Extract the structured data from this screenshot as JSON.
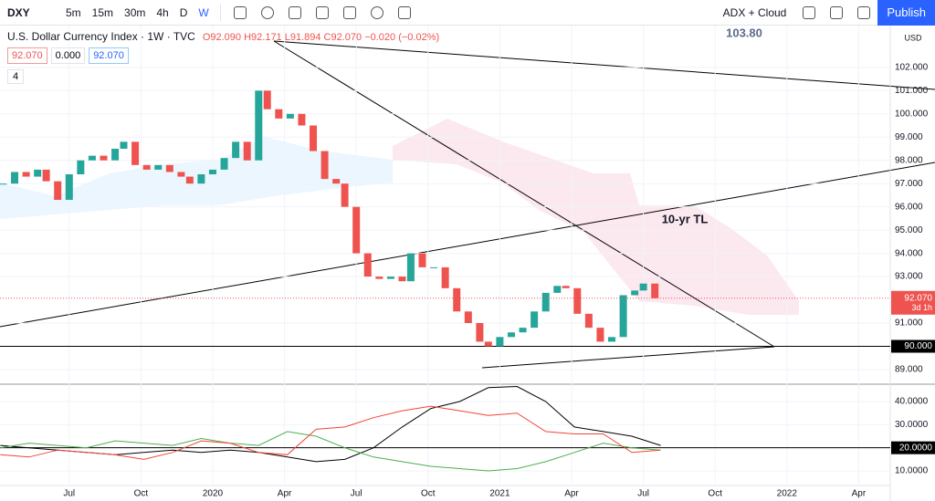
{
  "toolbar": {
    "symbol": "DXY",
    "intervals": [
      "5m",
      "15m",
      "30m",
      "4h",
      "D",
      "W"
    ],
    "indicators": "ADX + Cloud",
    "publish": "Publish"
  },
  "legend": {
    "title": "U.S. Dollar Currency Index · 1W · TVC",
    "ohlc": "O92.090 H92.171 L91.894 C92.070 −0.020 (−0.02%)",
    "badges": [
      "92.070",
      "0.000",
      "92.070"
    ],
    "count": "4"
  },
  "chart_data": [
    {
      "type": "candlestick",
      "currency": "USD",
      "annotations": [
        "103.80",
        "10-yr TL"
      ],
      "x": [
        2019.27,
        2019.31,
        2019.35,
        2019.39,
        2019.42,
        2019.46,
        2019.5,
        2019.54,
        2019.58,
        2019.62,
        2019.66,
        2019.69,
        2019.73,
        2019.77,
        2019.81,
        2019.85,
        2019.89,
        2019.92,
        2019.96,
        2020.0,
        2020.04,
        2020.08,
        2020.12,
        2020.16,
        2020.19,
        2020.23,
        2020.27,
        2020.31,
        2020.35,
        2020.39,
        2020.43,
        2020.46,
        2020.5,
        2020.54,
        2020.58,
        2020.62,
        2020.66,
        2020.69,
        2020.73,
        2020.77,
        2020.81,
        2020.85,
        2020.89,
        2020.93,
        2020.96,
        2021.0,
        2021.04,
        2021.08,
        2021.12,
        2021.16,
        2021.2,
        2021.23,
        2021.27,
        2021.31,
        2021.35,
        2021.39,
        2021.43,
        2021.47,
        2021.5,
        2021.54
      ],
      "close": [
        97.0,
        97.5,
        97.3,
        97.6,
        97.1,
        96.3,
        97.4,
        98.0,
        98.2,
        98.0,
        98.5,
        98.8,
        97.8,
        97.6,
        97.8,
        97.5,
        97.3,
        97.0,
        97.4,
        97.6,
        98.1,
        98.8,
        98.0,
        101.0,
        100.2,
        99.8,
        100.0,
        99.5,
        98.4,
        97.2,
        97.0,
        96.0,
        94.0,
        93.0,
        92.9,
        93.0,
        92.8,
        94.0,
        93.4,
        93.4,
        92.5,
        91.5,
        91.0,
        90.2,
        90.0,
        90.4,
        90.6,
        90.8,
        91.5,
        92.3,
        92.6,
        92.5,
        91.4,
        90.8,
        90.2,
        90.4,
        92.2,
        92.4,
        92.7,
        92.07
      ],
      "color_up": "#26a69a",
      "color_down": "#ef5350",
      "xlim": [
        2019.259,
        2022.36
      ],
      "xticks": [
        {
          "value": 2019.5,
          "label": "Jul"
        },
        {
          "value": 2019.75,
          "label": "Oct"
        },
        2020,
        {
          "value": 2020.25,
          "label": "Apr"
        },
        {
          "value": 2020.5,
          "label": "Jul"
        },
        {
          "value": 2020.75,
          "label": "Oct"
        },
        2021,
        {
          "value": 2021.25,
          "label": "Apr"
        },
        {
          "value": 2021.5,
          "label": "Jul"
        },
        {
          "value": 2021.75,
          "label": "Oct"
        },
        2022,
        {
          "value": 2022.25,
          "label": "Apr"
        }
      ],
      "ylim": [
        88.41,
        103.8
      ],
      "yticks": [
        {
          "value": 89,
          "label": "89.000"
        },
        {
          "value": 91,
          "label": "91.000"
        },
        {
          "value": 93,
          "label": "93.000"
        },
        {
          "value": 94,
          "label": "94.000"
        },
        {
          "value": 95,
          "label": "95.000"
        },
        {
          "value": 96,
          "label": "96.000"
        },
        {
          "value": 97,
          "label": "97.000"
        },
        {
          "value": 98,
          "label": "98.000"
        },
        {
          "value": 99,
          "label": "99.000"
        },
        {
          "value": 100,
          "label": "100.000"
        },
        {
          "value": 101,
          "label": "101.000"
        },
        {
          "value": 102,
          "label": "102.000"
        }
      ],
      "hline": {
        "value": 90,
        "label": "90.000"
      },
      "last_price": {
        "value": 92.07,
        "label": "92.070",
        "countdown": "3d 1h"
      },
      "grid": true
    },
    {
      "type": "line",
      "x": [
        2019.26,
        2019.36,
        2019.46,
        2019.56,
        2019.66,
        2019.76,
        2019.86,
        2019.96,
        2020.06,
        2020.16,
        2020.26,
        2020.36,
        2020.46,
        2020.56,
        2020.66,
        2020.76,
        2020.86,
        2020.96,
        2021.06,
        2021.16,
        2021.26,
        2021.36,
        2021.46,
        2021.56
      ],
      "series": [
        {
          "color": "#000000",
          "values": [
            21,
            20,
            19,
            18,
            17,
            18,
            19,
            18,
            19,
            18,
            16,
            14,
            15,
            20,
            29,
            37,
            40,
            46,
            46.5,
            40,
            29,
            27,
            25,
            21
          ]
        },
        {
          "color": "#4caf50",
          "values": [
            20,
            22,
            21,
            20,
            23,
            22,
            21,
            24,
            22,
            21,
            27,
            25,
            20,
            16,
            14,
            12,
            11,
            10,
            11,
            14,
            18,
            22,
            20,
            19
          ]
        },
        {
          "color": "#f44336",
          "values": [
            17,
            16,
            19,
            18,
            17,
            15,
            18,
            23,
            22,
            18,
            17,
            28,
            29,
            33,
            36,
            38,
            36,
            34,
            35,
            27,
            26,
            26,
            18,
            19
          ]
        }
      ],
      "ylim": [
        3.7,
        46.7
      ],
      "yticks": [
        {
          "value": 10,
          "label": "10.0000"
        },
        {
          "value": 30,
          "label": "30.0000"
        },
        {
          "value": 40,
          "label": "40.0000"
        }
      ],
      "hline": {
        "value": 20,
        "label": "20.0000"
      },
      "grid": true
    }
  ]
}
